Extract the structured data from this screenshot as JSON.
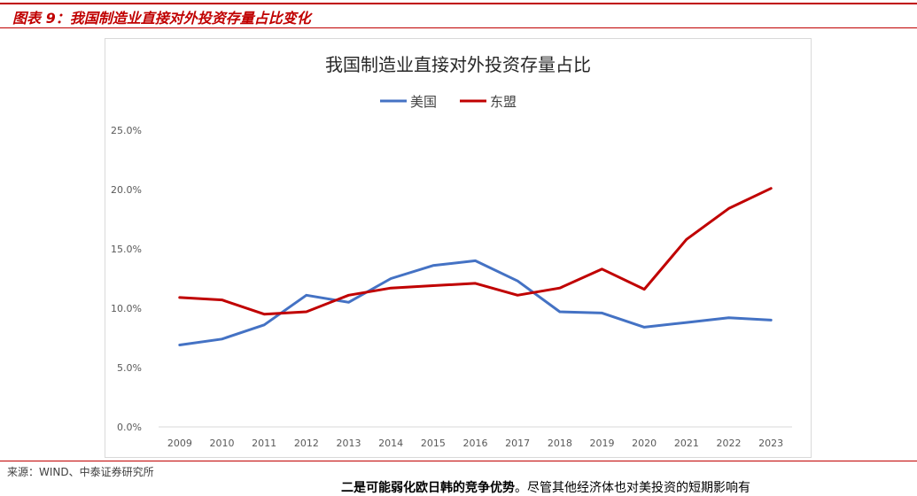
{
  "figure": {
    "caption": "图表 9：我国制造业直接对外投资存量占比变化",
    "source": "来源：WIND、中泰证券研究所",
    "body_text_bold": "二是可能弱化欧日韩的竞争优势",
    "body_text": "。尽管其他经济体也对美投资的短期影响有"
  },
  "colors": {
    "accent": "#c00000",
    "usa": "#4472c4",
    "asean": "#c00000"
  },
  "chart_data": {
    "type": "line",
    "title": "我国制造业直接对外投资存量占比",
    "categories": [
      "2009",
      "2010",
      "2011",
      "2012",
      "2013",
      "2014",
      "2015",
      "2016",
      "2017",
      "2018",
      "2019",
      "2020",
      "2021",
      "2022",
      "2023"
    ],
    "series": [
      {
        "name": "美国",
        "color": "#4472c4",
        "values": [
          6.9,
          7.4,
          8.6,
          11.1,
          10.5,
          12.5,
          13.6,
          14.0,
          12.3,
          9.7,
          9.6,
          8.4,
          8.8,
          9.2,
          9.0
        ]
      },
      {
        "name": "东盟",
        "color": "#c00000",
        "values": [
          10.9,
          10.7,
          9.5,
          9.7,
          11.1,
          11.7,
          11.9,
          12.1,
          11.1,
          11.7,
          13.3,
          11.6,
          15.8,
          18.4,
          20.1
        ]
      }
    ],
    "yticks": [
      "0.0%",
      "5.0%",
      "10.0%",
      "15.0%",
      "20.0%",
      "25.0%"
    ],
    "ylim": [
      0,
      25
    ],
    "grid": false,
    "legend": "top-center"
  }
}
